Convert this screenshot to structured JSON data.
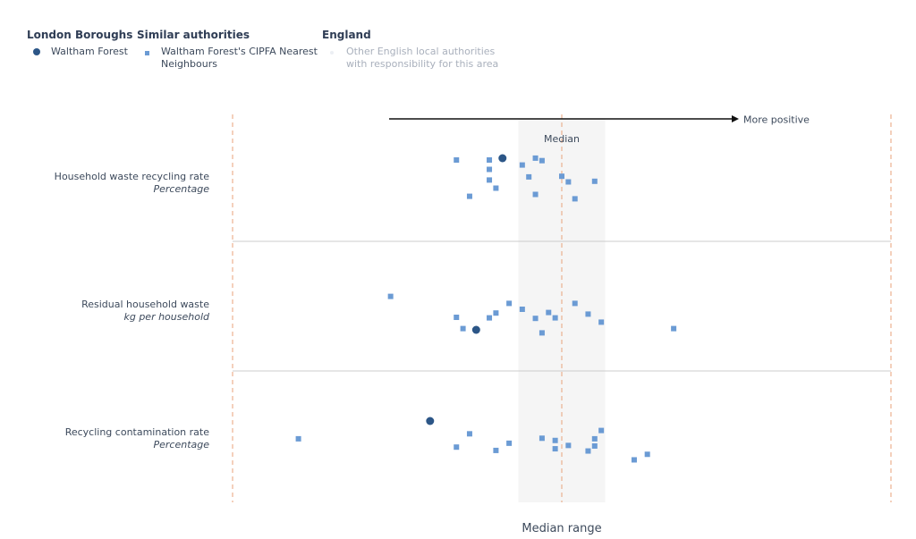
{
  "legend": {
    "groups": [
      {
        "title": "London Boroughs",
        "item": "Waltham Forest",
        "symbol": "circle",
        "color": "#2c5687"
      },
      {
        "title": "Similar authorities",
        "item_lines": [
          "Waltham Forest's CIPFA Nearest",
          "Neighbours"
        ],
        "symbol": "square",
        "color": "#6b9bd4"
      },
      {
        "title": "England",
        "item_lines": [
          "Other English local authorities",
          "with responsibility for this area"
        ],
        "symbol": "circle",
        "color": "#eceff3"
      }
    ]
  },
  "chart_data": {
    "type": "scatter",
    "direction_label": "More positive",
    "median_label": "Median",
    "x_axis_label": "Median range",
    "colors": {
      "highlight": "#2c5687",
      "neighbours": "#6b9bd4",
      "median_band": "#f5f5f5",
      "guide_lines": "#e8a27a",
      "separator": "#cccccc"
    },
    "rows": [
      {
        "label": "Household waste recycling rate",
        "unit": "Percentage",
        "highlight": {
          "name": "Waltham Forest",
          "x": 0.41
        },
        "neighbours": [
          {
            "x": 0.34,
            "j": 0.1
          },
          {
            "x": 0.39,
            "j": 0.1
          },
          {
            "x": 0.39,
            "j": 0.25
          },
          {
            "x": 0.39,
            "j": 0.42
          },
          {
            "x": 0.4,
            "j": 0.55
          },
          {
            "x": 0.36,
            "j": 0.68
          },
          {
            "x": 0.44,
            "j": 0.18
          },
          {
            "x": 0.46,
            "j": 0.07
          },
          {
            "x": 0.47,
            "j": 0.11
          },
          {
            "x": 0.45,
            "j": 0.37
          },
          {
            "x": 0.46,
            "j": 0.65
          },
          {
            "x": 0.5,
            "j": 0.36
          },
          {
            "x": 0.51,
            "j": 0.45
          },
          {
            "x": 0.52,
            "j": 0.72
          },
          {
            "x": 0.55,
            "j": 0.44
          }
        ]
      },
      {
        "label": "Residual household waste",
        "unit": "kg per household",
        "highlight": {
          "name": "Waltham Forest",
          "x": 0.37
        },
        "neighbours": [
          {
            "x": 0.24,
            "j": 0.16
          },
          {
            "x": 0.34,
            "j": 0.55
          },
          {
            "x": 0.35,
            "j": 0.76
          },
          {
            "x": 0.39,
            "j": 0.56
          },
          {
            "x": 0.4,
            "j": 0.47
          },
          {
            "x": 0.42,
            "j": 0.29
          },
          {
            "x": 0.44,
            "j": 0.4
          },
          {
            "x": 0.46,
            "j": 0.57
          },
          {
            "x": 0.48,
            "j": 0.46
          },
          {
            "x": 0.49,
            "j": 0.56
          },
          {
            "x": 0.47,
            "j": 0.84
          },
          {
            "x": 0.52,
            "j": 0.29
          },
          {
            "x": 0.54,
            "j": 0.49
          },
          {
            "x": 0.56,
            "j": 0.64
          },
          {
            "x": 0.67,
            "j": 0.76
          }
        ]
      },
      {
        "label": "Recycling contamination rate",
        "unit": "Percentage",
        "highlight": {
          "name": "Waltham Forest",
          "x": 0.3
        },
        "neighbours": [
          {
            "x": 0.1,
            "j": 0.45
          },
          {
            "x": 0.34,
            "j": 0.6
          },
          {
            "x": 0.36,
            "j": 0.36
          },
          {
            "x": 0.4,
            "j": 0.66
          },
          {
            "x": 0.42,
            "j": 0.53
          },
          {
            "x": 0.47,
            "j": 0.44
          },
          {
            "x": 0.49,
            "j": 0.48
          },
          {
            "x": 0.49,
            "j": 0.63
          },
          {
            "x": 0.51,
            "j": 0.57
          },
          {
            "x": 0.55,
            "j": 0.45
          },
          {
            "x": 0.55,
            "j": 0.58
          },
          {
            "x": 0.56,
            "j": 0.3
          },
          {
            "x": 0.54,
            "j": 0.67
          },
          {
            "x": 0.61,
            "j": 0.83
          },
          {
            "x": 0.63,
            "j": 0.73
          }
        ]
      }
    ],
    "median": 0.5,
    "median_range": [
      0.434,
      0.566
    ],
    "xlim": [
      0,
      1
    ]
  }
}
